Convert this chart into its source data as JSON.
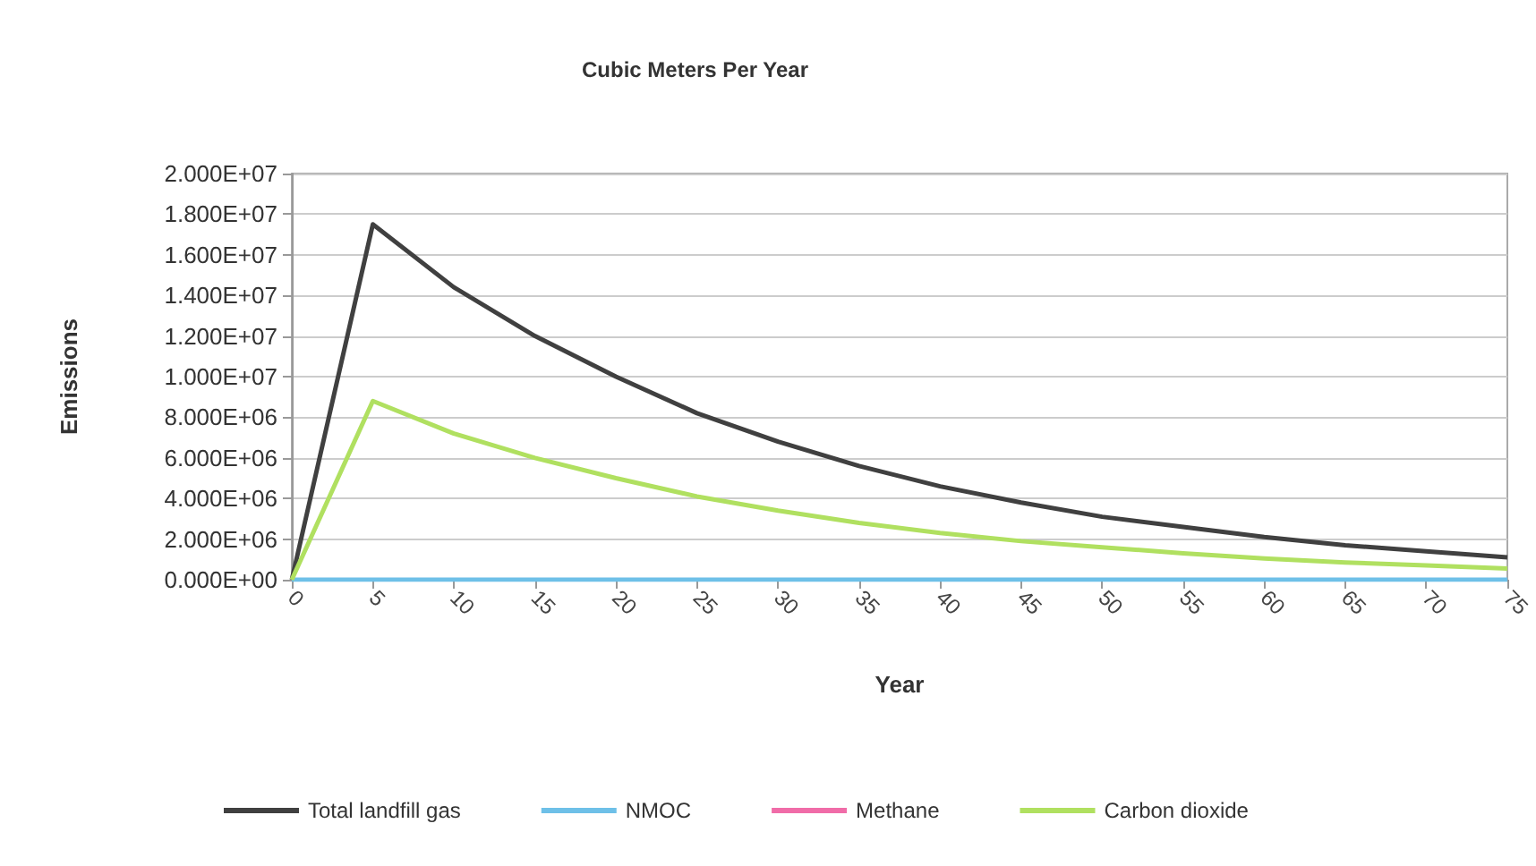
{
  "chart_data": {
    "type": "line",
    "title": "Cubic Meters Per Year",
    "xlabel": "Year",
    "ylabel": "Emissions",
    "x": [
      0,
      5,
      10,
      15,
      20,
      25,
      30,
      35,
      40,
      45,
      50,
      55,
      60,
      65,
      70,
      75
    ],
    "series": [
      {
        "name": "Total landfill gas",
        "color": "#404040",
        "values": [
          0,
          17500000,
          14400000,
          12000000,
          10000000,
          8200000,
          6800000,
          5600000,
          4600000,
          3800000,
          3100000,
          2600000,
          2100000,
          1700000,
          1400000,
          1100000
        ]
      },
      {
        "name": "NMOC",
        "color": "#6ec0e8",
        "values": [
          0,
          0,
          0,
          0,
          0,
          0,
          0,
          0,
          0,
          0,
          0,
          0,
          0,
          0,
          0,
          0
        ]
      },
      {
        "name": "Methane",
        "color": "#f06ca8",
        "values": [
          null,
          null,
          null,
          null,
          null,
          null,
          null,
          null,
          null,
          null,
          null,
          null,
          null,
          null,
          null,
          null
        ]
      },
      {
        "name": "Carbon dioxide",
        "color": "#b0e060",
        "values": [
          0,
          8800000,
          7200000,
          6000000,
          5000000,
          4100000,
          3400000,
          2800000,
          2300000,
          1900000,
          1600000,
          1300000,
          1050000,
          850000,
          700000,
          550000
        ]
      }
    ],
    "xlim": [
      0,
      75
    ],
    "xticks": [
      0,
      5,
      10,
      15,
      20,
      25,
      30,
      35,
      40,
      45,
      50,
      55,
      60,
      65,
      70,
      75
    ],
    "ylim": [
      0,
      20000000
    ],
    "yticks": [
      {
        "value": 0,
        "label": "0.000E+00"
      },
      {
        "value": 2000000,
        "label": "2.000E+06"
      },
      {
        "value": 4000000,
        "label": "4.000E+06"
      },
      {
        "value": 6000000,
        "label": "6.000E+06"
      },
      {
        "value": 8000000,
        "label": "8.000E+06"
      },
      {
        "value": 10000000,
        "label": "1.000E+07"
      },
      {
        "value": 12000000,
        "label": "1.200E+07"
      },
      {
        "value": 14000000,
        "label": "1.400E+07"
      },
      {
        "value": 16000000,
        "label": "1.600E+07"
      },
      {
        "value": 18000000,
        "label": "1.800E+07"
      },
      {
        "value": 20000000,
        "label": "2.000E+07"
      }
    ],
    "grid": "y",
    "legend": "bottom",
    "marker": "none",
    "line_style": "solid"
  }
}
